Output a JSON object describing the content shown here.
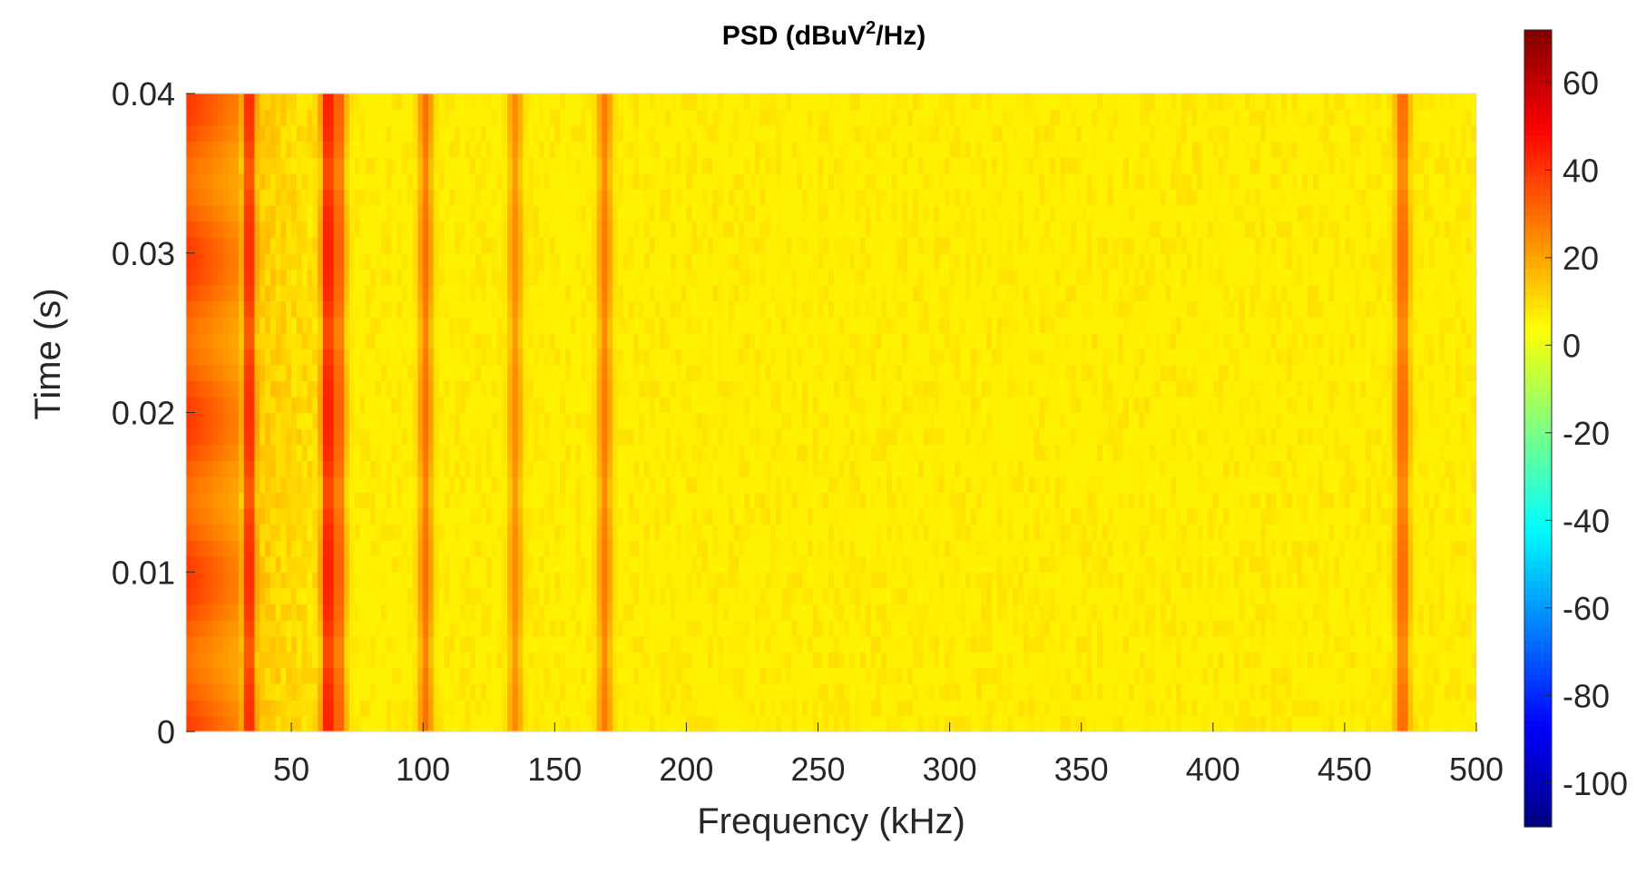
{
  "chart_data": {
    "type": "heatmap",
    "title": "PSD (dBuV",
    "title_superscript": "2",
    "title_suffix": "/Hz)",
    "xlabel": "Frequency (kHz)",
    "ylabel": "Time (s)",
    "xlim": [
      10,
      500
    ],
    "ylim": [
      0,
      0.04
    ],
    "x_ticks": [
      50,
      100,
      150,
      200,
      250,
      300,
      350,
      400,
      450,
      500
    ],
    "x_tick_labels": [
      "50",
      "100",
      "150",
      "200",
      "250",
      "300",
      "350",
      "400",
      "450",
      "500"
    ],
    "y_ticks": [
      0,
      0.01,
      0.02,
      0.03,
      0.04
    ],
    "y_tick_labels": [
      "0",
      "0.01",
      "0.02",
      "0.03",
      "0.04"
    ],
    "colorbar": {
      "colormap": "jet",
      "clim": [
        -110,
        72
      ],
      "ticks": [
        60,
        40,
        20,
        0,
        -20,
        -40,
        -60,
        -80,
        -100
      ],
      "tick_labels": [
        "60",
        "40",
        "20",
        "0",
        "-20",
        "-40",
        "-60",
        "-80",
        "-100"
      ]
    },
    "background_level_db": 6,
    "low_freq_band": {
      "from_khz": 10,
      "to_khz": 30,
      "peak_db": 40
    },
    "spectral_lines": [
      {
        "freq_khz": 34,
        "peak_db": 45
      },
      {
        "freq_khz": 64,
        "peak_db": 48
      },
      {
        "freq_khz": 68,
        "peak_db": 35
      },
      {
        "freq_khz": 101,
        "peak_db": 30
      },
      {
        "freq_khz": 135,
        "peak_db": 25
      },
      {
        "freq_khz": 169,
        "peak_db": 28
      },
      {
        "freq_khz": 472,
        "peak_db": 32
      }
    ]
  }
}
